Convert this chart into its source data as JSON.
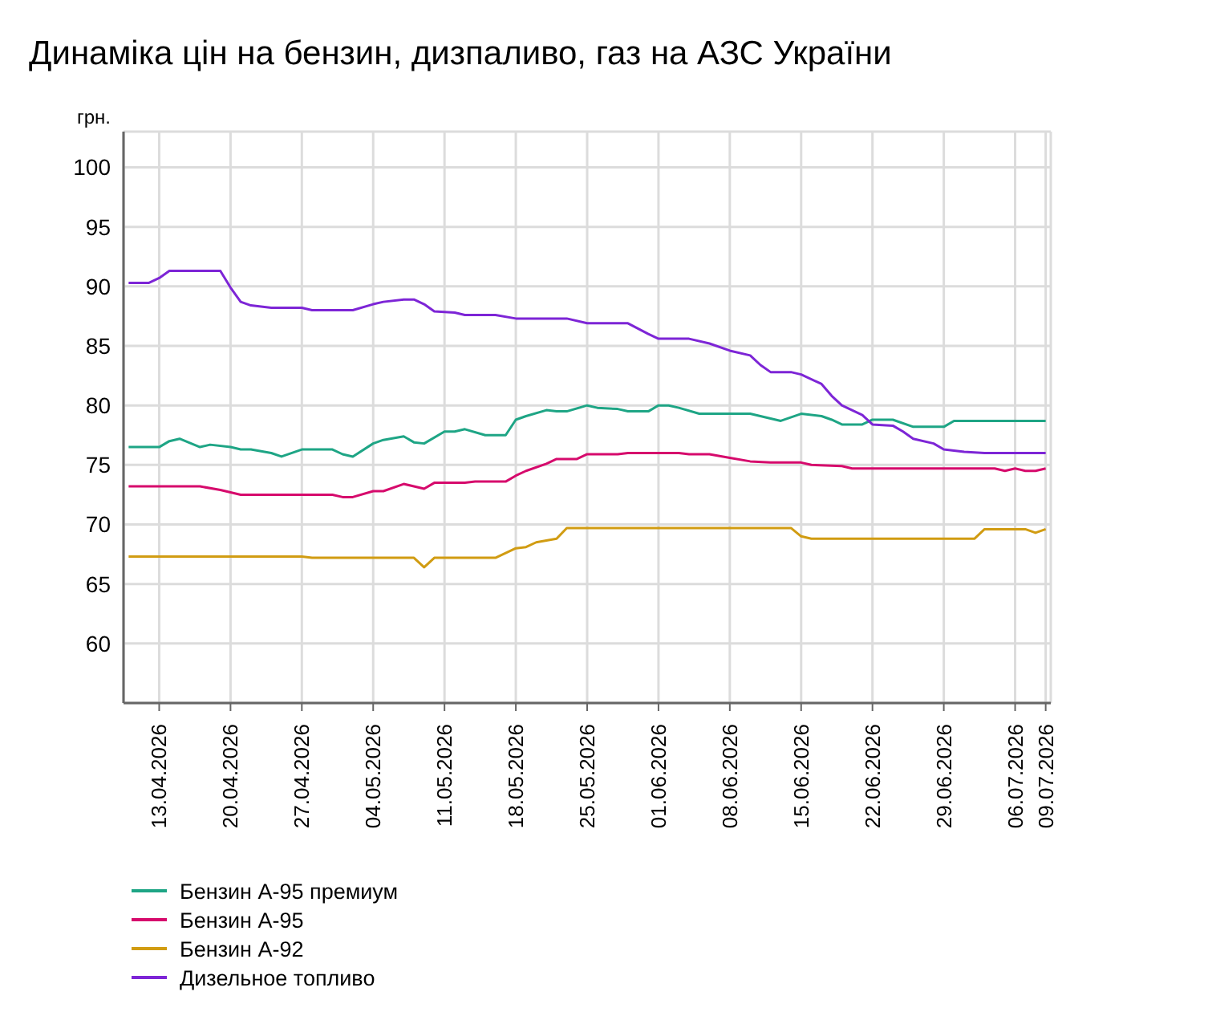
{
  "chart_data": {
    "type": "line",
    "title": "Динаміка цін на бензин, дизпаливо, газ на АЗС України",
    "ylabel": "грн.",
    "xlim": [
      "2026-04-09T12:00",
      "2026-07-09T12:00"
    ],
    "xticks": [
      {
        "value": "2026-04-13",
        "label": "13.04.2026"
      },
      {
        "value": "2026-04-20",
        "label": "20.04.2026"
      },
      {
        "value": "2026-04-27",
        "label": "27.04.2026"
      },
      {
        "value": "2026-05-04",
        "label": "04.05.2026"
      },
      {
        "value": "2026-05-11",
        "label": "11.05.2026"
      },
      {
        "value": "2026-05-18",
        "label": "18.05.2026"
      },
      {
        "value": "2026-05-25",
        "label": "25.05.2026"
      },
      {
        "value": "2026-06-01",
        "label": "01.06.2026"
      },
      {
        "value": "2026-06-08",
        "label": "08.06.2026"
      },
      {
        "value": "2026-06-15",
        "label": "15.06.2026"
      },
      {
        "value": "2026-06-22",
        "label": "22.06.2026"
      },
      {
        "value": "2026-06-29",
        "label": "29.06.2026"
      },
      {
        "value": "2026-07-06",
        "label": "06.07.2026"
      },
      {
        "value": "2026-07-09",
        "label": "09.07.2026"
      }
    ],
    "ylim": [
      55,
      103
    ],
    "yticks": [
      60,
      65,
      70,
      75,
      80,
      85,
      90,
      95,
      100
    ],
    "grid": true,
    "legend": "bottom left",
    "series": [
      {
        "name": "Бензин А-95 премиум",
        "color": "#1ea585",
        "x": [
          "2026-04-10",
          "2026-04-13",
          "2026-04-14",
          "2026-04-15",
          "2026-04-17",
          "2026-04-18",
          "2026-04-20",
          "2026-04-21",
          "2026-04-22",
          "2026-04-24",
          "2026-04-25",
          "2026-04-27",
          "2026-04-30",
          "2026-05-01",
          "2026-05-02",
          "2026-05-04",
          "2026-05-05",
          "2026-05-07",
          "2026-05-08",
          "2026-05-09",
          "2026-05-11",
          "2026-05-12",
          "2026-05-13",
          "2026-05-15",
          "2026-05-17",
          "2026-05-18",
          "2026-05-19",
          "2026-05-21",
          "2026-05-22",
          "2026-05-23",
          "2026-05-25",
          "2026-05-26",
          "2026-05-28",
          "2026-05-29",
          "2026-05-31",
          "2026-06-01",
          "2026-06-02",
          "2026-06-03",
          "2026-06-05",
          "2026-06-10",
          "2026-06-12",
          "2026-06-13",
          "2026-06-15",
          "2026-06-17",
          "2026-06-18",
          "2026-06-19",
          "2026-06-21",
          "2026-06-22",
          "2026-06-24",
          "2026-06-26",
          "2026-06-29",
          "2026-06-30",
          "2026-07-09"
        ],
        "values": [
          76.5,
          76.5,
          77.0,
          77.2,
          76.5,
          76.7,
          76.5,
          76.3,
          76.3,
          76.0,
          75.7,
          76.3,
          76.3,
          75.9,
          75.7,
          76.8,
          77.1,
          77.4,
          76.9,
          76.8,
          77.8,
          77.8,
          78.0,
          77.5,
          77.5,
          78.8,
          79.1,
          79.6,
          79.5,
          79.5,
          80.0,
          79.8,
          79.7,
          79.5,
          79.5,
          80.0,
          80.0,
          79.8,
          79.3,
          79.3,
          78.9,
          78.7,
          79.3,
          79.1,
          78.8,
          78.4,
          78.4,
          78.8,
          78.8,
          78.2,
          78.2,
          78.7,
          78.7
        ]
      },
      {
        "name": "Бензин А-95",
        "color": "#d60a6c",
        "x": [
          "2026-04-10",
          "2026-04-17",
          "2026-04-19",
          "2026-04-20",
          "2026-04-21",
          "2026-04-30",
          "2026-05-01",
          "2026-05-02",
          "2026-05-04",
          "2026-05-05",
          "2026-05-07",
          "2026-05-08",
          "2026-05-09",
          "2026-05-10",
          "2026-05-13",
          "2026-05-14",
          "2026-05-17",
          "2026-05-18",
          "2026-05-19",
          "2026-05-21",
          "2026-05-22",
          "2026-05-24",
          "2026-05-25",
          "2026-05-28",
          "2026-05-29",
          "2026-06-03",
          "2026-06-04",
          "2026-06-06",
          "2026-06-08",
          "2026-06-10",
          "2026-06-12",
          "2026-06-15",
          "2026-06-16",
          "2026-06-19",
          "2026-06-20",
          "2026-07-04",
          "2026-07-05",
          "2026-07-06",
          "2026-07-07",
          "2026-07-08",
          "2026-07-09"
        ],
        "values": [
          73.2,
          73.2,
          72.9,
          72.7,
          72.5,
          72.5,
          72.3,
          72.3,
          72.8,
          72.8,
          73.4,
          73.2,
          73.0,
          73.5,
          73.5,
          73.6,
          73.6,
          74.1,
          74.5,
          75.1,
          75.5,
          75.5,
          75.9,
          75.9,
          76.0,
          76.0,
          75.9,
          75.9,
          75.6,
          75.3,
          75.2,
          75.2,
          75.0,
          74.9,
          74.7,
          74.7,
          74.5,
          74.7,
          74.5,
          74.5,
          74.7
        ]
      },
      {
        "name": "Бензин А-92",
        "color": "#d19c12",
        "x": [
          "2026-04-10",
          "2026-04-27",
          "2026-04-28",
          "2026-05-08",
          "2026-05-09",
          "2026-05-10",
          "2026-05-16",
          "2026-05-18",
          "2026-05-19",
          "2026-05-20",
          "2026-05-22",
          "2026-05-23",
          "2026-06-14",
          "2026-06-15",
          "2026-06-16",
          "2026-07-02",
          "2026-07-03",
          "2026-07-07",
          "2026-07-08",
          "2026-07-09"
        ],
        "values": [
          67.3,
          67.3,
          67.2,
          67.2,
          66.4,
          67.2,
          67.2,
          68.0,
          68.1,
          68.5,
          68.8,
          69.7,
          69.7,
          69.0,
          68.8,
          68.8,
          69.6,
          69.6,
          69.3,
          69.6
        ]
      },
      {
        "name": "Дизельное топливо",
        "color": "#7d25d6",
        "x": [
          "2026-04-10",
          "2026-04-12",
          "2026-04-13",
          "2026-04-14",
          "2026-04-19",
          "2026-04-20",
          "2026-04-21",
          "2026-04-22",
          "2026-04-24",
          "2026-04-27",
          "2026-04-28",
          "2026-05-02",
          "2026-05-04",
          "2026-05-05",
          "2026-05-07",
          "2026-05-08",
          "2026-05-09",
          "2026-05-10",
          "2026-05-12",
          "2026-05-13",
          "2026-05-16",
          "2026-05-18",
          "2026-05-23",
          "2026-05-25",
          "2026-05-29",
          "2026-05-31",
          "2026-06-01",
          "2026-06-04",
          "2026-06-06",
          "2026-06-08",
          "2026-06-10",
          "2026-06-11",
          "2026-06-12",
          "2026-06-14",
          "2026-06-15",
          "2026-06-17",
          "2026-06-18",
          "2026-06-19",
          "2026-06-21",
          "2026-06-22",
          "2026-06-24",
          "2026-06-25",
          "2026-06-26",
          "2026-06-28",
          "2026-06-29",
          "2026-07-01",
          "2026-07-03",
          "2026-07-09"
        ],
        "values": [
          90.3,
          90.3,
          90.7,
          91.3,
          91.3,
          89.9,
          88.7,
          88.4,
          88.2,
          88.2,
          88.0,
          88.0,
          88.5,
          88.7,
          88.9,
          88.9,
          88.5,
          87.9,
          87.8,
          87.6,
          87.6,
          87.3,
          87.3,
          86.9,
          86.9,
          86.0,
          85.6,
          85.6,
          85.2,
          84.6,
          84.2,
          83.4,
          82.8,
          82.8,
          82.6,
          81.8,
          80.8,
          80.0,
          79.2,
          78.4,
          78.3,
          77.8,
          77.2,
          76.8,
          76.3,
          76.1,
          76.0,
          76.0
        ]
      }
    ]
  }
}
